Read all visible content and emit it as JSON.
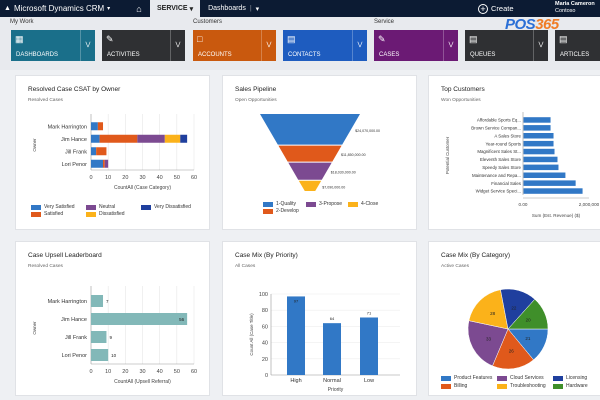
{
  "topbar": {
    "app_title": "Microsoft Dynamics CRM",
    "home_icon": "home-icon",
    "area": "SERVICE",
    "section": "Dashboards",
    "create_label": "Create",
    "user_name": "Maria Cameron",
    "org_name": "Contoso"
  },
  "watermark": {
    "part1": "POS",
    "part2": "365"
  },
  "nav": {
    "groups": [
      "My Work",
      "Customers",
      "Service"
    ],
    "tiles": [
      {
        "label": "DASHBOARDS",
        "icon": "dashboard-icon",
        "color": "#1a6f8a"
      },
      {
        "label": "ACTIVITIES",
        "icon": "clipboard-icon",
        "color": "#2f3033"
      },
      {
        "label": "ACCOUNTS",
        "icon": "folder-icon",
        "color": "#c9590e"
      },
      {
        "label": "CONTACTS",
        "icon": "contact-card-icon",
        "color": "#1e5cbf"
      },
      {
        "label": "CASES",
        "icon": "case-icon",
        "color": "#6b1a74"
      },
      {
        "label": "QUEUES",
        "icon": "queue-icon",
        "color": "#2f3033"
      },
      {
        "label": "ARTICLES",
        "icon": "article-icon",
        "color": "#2f3033"
      }
    ]
  },
  "panels": {
    "csat": {
      "title": "Resolved Case CSAT by Owner",
      "subtitle": "Resolved Cases"
    },
    "pipeline": {
      "title": "Sales Pipeline",
      "subtitle": "Open Opportunities"
    },
    "customers": {
      "title": "Top Customers",
      "subtitle": "Won Opportunities"
    },
    "upsell": {
      "title": "Case Upsell Leaderboard",
      "subtitle": "Resolved Cases"
    },
    "priority": {
      "title": "Case Mix (By Priority)",
      "subtitle": "All Cases"
    },
    "category": {
      "title": "Case Mix (By Category)",
      "subtitle": "Active Cases"
    }
  },
  "chart_data": [
    {
      "id": "csat",
      "type": "bar",
      "orientation": "horizontal",
      "stacked": true,
      "title": "Resolved Case CSAT by Owner",
      "subtitle": "Resolved Cases",
      "xlabel": "CountAll (Case Category)",
      "ylabel": "Owner",
      "xlim": [
        0,
        60
      ],
      "xticks": [
        0,
        10,
        20,
        30,
        40,
        50,
        60
      ],
      "categories": [
        "Mark Harrington",
        "Jim Hance",
        "Jill Frank",
        "Lori Penor"
      ],
      "series": [
        {
          "name": "Very Satisfied",
          "color": "#3178c6",
          "values": [
            4,
            5,
            3,
            7
          ]
        },
        {
          "name": "Satisfied",
          "color": "#e0591b",
          "values": [
            3,
            22,
            6,
            1
          ]
        },
        {
          "name": "Neutral",
          "color": "#7c4a91",
          "values": [
            0,
            16,
            0,
            2
          ]
        },
        {
          "name": "Dissatisfied",
          "color": "#fbb21a",
          "values": [
            0,
            9,
            0,
            0
          ]
        },
        {
          "name": "Very Dissatisfied",
          "color": "#1f3f9e",
          "values": [
            0,
            4,
            0,
            0
          ]
        }
      ],
      "legend": "bottom",
      "grid": true
    },
    {
      "id": "pipeline",
      "type": "funnel",
      "title": "Sales Pipeline",
      "subtitle": "Open Opportunities",
      "categories": [
        "1-Quality",
        "2-Develop",
        "3-Propose",
        "4-Close"
      ],
      "values": [
        24070000,
        11850000,
        18030000,
        7090000
      ],
      "labels": [
        "$24,070,000.00",
        "$11,850,000.00",
        "$18,030,000.00",
        "$7,090,000.00"
      ],
      "colors": [
        "#3178c6",
        "#e0591b",
        "#7c4a91",
        "#fbb21a"
      ],
      "legend": "bottom"
    },
    {
      "id": "customers",
      "type": "bar",
      "orientation": "horizontal",
      "title": "Top Customers",
      "subtitle": "Won Opportunities",
      "xlabel": "Sum (Est. Revenue) ($)",
      "ylabel": "Potential Customer",
      "xlim": [
        0,
        2000000
      ],
      "xtick_labels": [
        "0.00",
        "2,000,000"
      ],
      "categories": [
        "Affordable Sports Eq...",
        "Brown Service Compan...",
        "A Sales Store",
        "Year-round Sports",
        "Magnificent Sales St...",
        "Eleventh Sales Store",
        "Speedy Sales Store",
        "Maintenance and Repa...",
        "Financial Sales",
        "Widget Service Speci..."
      ],
      "values": [
        820000,
        820000,
        910000,
        910000,
        940000,
        1030000,
        1060000,
        1270000,
        1580000,
        1790000
      ],
      "color": "#3178c6",
      "grid": false
    },
    {
      "id": "upsell",
      "type": "bar",
      "orientation": "horizontal",
      "title": "Case Upsell Leaderboard",
      "subtitle": "Resolved Cases",
      "xlabel": "CountAll (Upsell Referral)",
      "ylabel": "Owner",
      "xlim": [
        0,
        60
      ],
      "xticks": [
        0,
        10,
        20,
        30,
        40,
        50,
        60
      ],
      "categories": [
        "Mark Harrington",
        "Jim Hance",
        "Jill Frank",
        "Lori Penor"
      ],
      "values": [
        7,
        56,
        9,
        10
      ],
      "color": "#82b8b8",
      "grid": true
    },
    {
      "id": "priority",
      "type": "bar",
      "orientation": "vertical",
      "title": "Case Mix (By Priority)",
      "subtitle": "All Cases",
      "xlabel": "Priority",
      "ylabel": "Count All (Case Title)",
      "ylim": [
        0,
        100
      ],
      "yticks": [
        0,
        20,
        40,
        60,
        80,
        100
      ],
      "categories": [
        "High",
        "Normal",
        "Low"
      ],
      "values": [
        97,
        64,
        71
      ],
      "color": "#3178c6",
      "grid": true
    },
    {
      "id": "category",
      "type": "pie",
      "title": "Case Mix (By Category)",
      "subtitle": "Active Cases",
      "categories": [
        "Product Features",
        "Billing",
        "Cloud Services",
        "Troubleshooting",
        "Licensing",
        "Hardware"
      ],
      "values": [
        21,
        26,
        33,
        28,
        22,
        20
      ],
      "colors": [
        "#3178c6",
        "#e0591b",
        "#7c4a91",
        "#fbb21a",
        "#1f3f9e",
        "#3f8f2a"
      ],
      "legend": "bottom"
    }
  ]
}
